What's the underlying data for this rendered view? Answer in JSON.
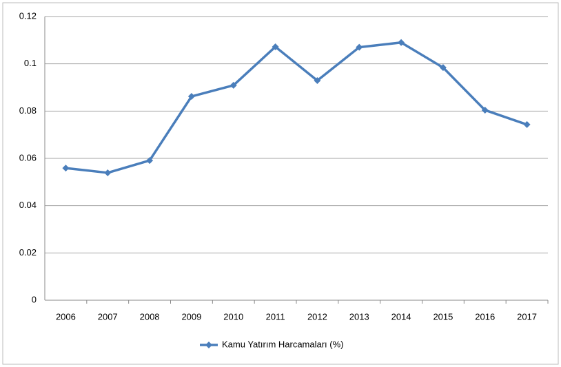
{
  "chart_data": {
    "type": "line",
    "categories": [
      "2006",
      "2007",
      "2008",
      "2009",
      "2010",
      "2011",
      "2012",
      "2013",
      "2014",
      "2015",
      "2016",
      "2017"
    ],
    "series": [
      {
        "name": "Kamu Yatırım Harcamaları (%)",
        "color": "#4a7ebb",
        "values": [
          0.0559,
          0.0539,
          0.0591,
          0.0862,
          0.0909,
          0.1072,
          0.0929,
          0.107,
          0.109,
          0.0984,
          0.0804,
          0.0743
        ]
      }
    ],
    "ylim": [
      0,
      0.12
    ],
    "yticks": [
      0,
      0.02,
      0.04,
      0.06,
      0.08,
      0.1,
      0.12
    ],
    "grid": true,
    "legend": "bottom"
  }
}
